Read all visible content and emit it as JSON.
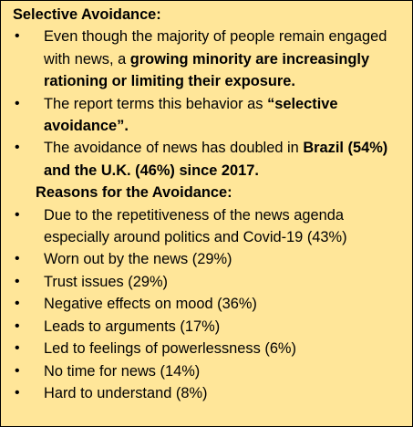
{
  "title": "Selective Avoidance:",
  "bullets": [
    [
      "Even though the majority of people remain engaged with news, a ",
      "growing minority are increasingly rationing or limiting their exposure."
    ],
    [
      "The report terms this behavior as ",
      "“selective avoidance”."
    ],
    [
      "The avoidance of news has doubled in ",
      "Brazil (54%) and the U.K. (46%) since 2017."
    ]
  ],
  "subheading": "Reasons for the Avoidance:",
  "reasons": [
    "Due to the repetitiveness of the news agenda especially around politics and Covid-19 (43%)",
    "Worn out by the news (29%)",
    "Trust issues (29%)",
    "Negative effects on mood (36%)",
    "Leads to arguments (17%)",
    "Led to feelings of powerlessness (6%)",
    "No time for news (14%)",
    "Hard to understand (8%)"
  ]
}
